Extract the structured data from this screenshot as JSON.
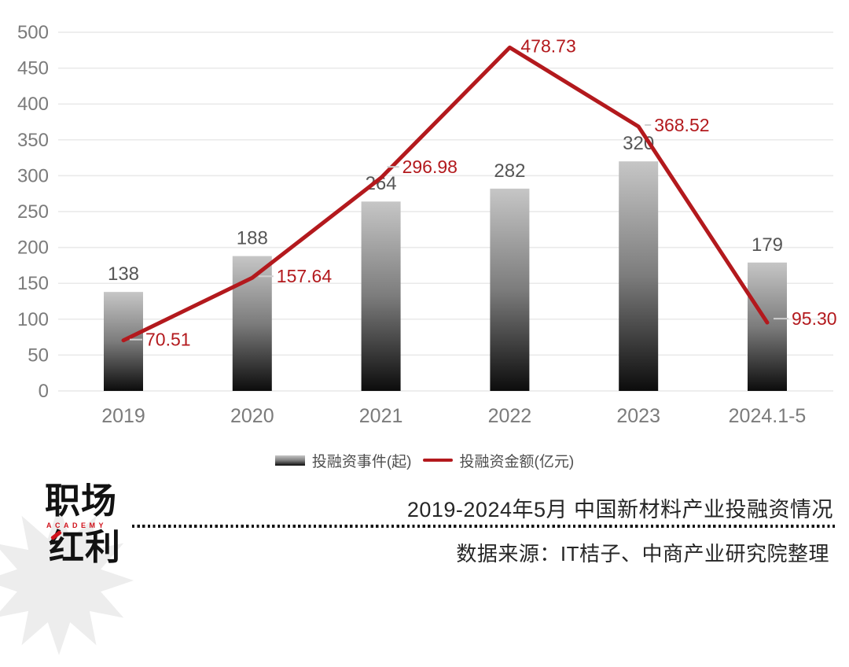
{
  "chart_data": {
    "type": "combo-bar-line",
    "title": "2019-2024年5月 中国新材料产业投融资情况",
    "categories": [
      "2019",
      "2020",
      "2021",
      "2022",
      "2023",
      "2024.1-5"
    ],
    "series": [
      {
        "name": "投融资事件(起)",
        "type": "bar",
        "values": [
          138,
          188,
          264,
          282,
          320,
          179
        ]
      },
      {
        "name": "投融资金额(亿元)",
        "type": "line",
        "values": [
          70.51,
          157.64,
          296.98,
          478.73,
          368.52,
          95.3
        ],
        "value_labels": [
          "70.51",
          "157.64",
          "296.98",
          "478.73",
          "368.52",
          "95.30"
        ]
      }
    ],
    "ylim": [
      0,
      500
    ],
    "yticks": [
      0,
      50,
      100,
      150,
      200,
      250,
      300,
      350,
      400,
      450,
      500
    ],
    "grid": true,
    "legend_position": "bottom"
  },
  "legend": {
    "bar_label": "投融资事件(起)",
    "line_label": "投融资金额(亿元)"
  },
  "footer": {
    "title": "2019-2024年5月 中国新材料产业投融资情况",
    "source": "数据来源：IT桔子、中商产业研究院整理"
  },
  "logo": {
    "line1": "职场",
    "academy": "ACADEMY",
    "line2": "红利"
  },
  "colors": {
    "line_red": "#b3191d",
    "label_red": "#b3191d",
    "logo_red": "#d0121b",
    "bar_top": "#c6c6c6",
    "bar_mid": "#7c7c7c",
    "bar_bottom": "#0c0c0c",
    "grid": "#e9e9e9",
    "leader": "#cfcfcf",
    "axis_text": "#7b7b7b",
    "bar_value_text": "#565656",
    "footer_text": "#262626",
    "legend_text": "#4f4f4f"
  }
}
